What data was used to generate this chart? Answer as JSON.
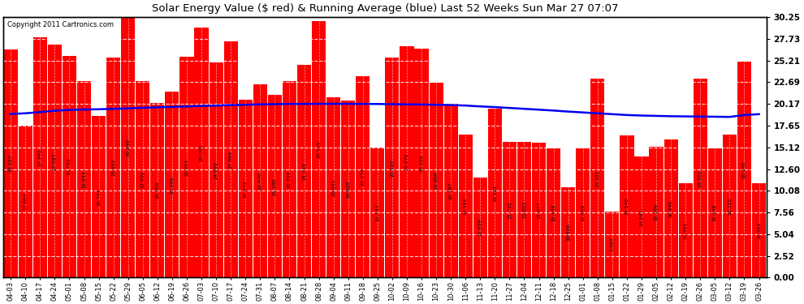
{
  "title": "Solar Energy Value ($ red) & Running Average (blue) Last 52 Weeks Sun Mar 27 07:07",
  "copyright": "Copyright 2011 Cartronics.com",
  "bar_color": "#ff0000",
  "line_color": "#0000ee",
  "background_color": "#ffffff",
  "plot_bg_color": "#ffffff",
  "grid_color": "#aaaaaa",
  "categories": [
    "04-03",
    "04-10",
    "04-17",
    "04-24",
    "05-01",
    "05-08",
    "05-15",
    "05-22",
    "05-29",
    "06-05",
    "06-12",
    "06-19",
    "06-26",
    "07-03",
    "07-10",
    "07-17",
    "07-24",
    "07-31",
    "08-07",
    "08-14",
    "08-21",
    "08-28",
    "09-04",
    "09-11",
    "09-18",
    "09-25",
    "10-02",
    "10-09",
    "10-16",
    "10-23",
    "10-30",
    "11-06",
    "11-13",
    "11-20",
    "11-27",
    "12-04",
    "12-11",
    "12-18",
    "12-25",
    "01-01",
    "01-08",
    "01-15",
    "01-22",
    "01-29",
    "02-05",
    "02-12",
    "02-19",
    "02-26",
    "03-05",
    "03-12",
    "03-19",
    "03-26"
  ],
  "values": [
    26.527,
    17.664,
    27.942,
    27.027,
    25.782,
    22.844,
    18.743,
    25.582,
    30.249,
    22.8,
    20.3,
    21.56,
    25.651,
    29.0,
    24.993,
    27.394,
    20.672,
    22.47,
    21.18,
    22.858,
    24.719,
    29.835,
    20.941,
    20.528,
    23.376,
    15.144,
    25.525,
    26.876,
    26.558,
    22.65,
    20.187,
    16.59,
    11.639,
    19.581,
    15.748,
    15.802,
    15.677,
    15.048,
    10.506,
    15.008,
    23.101,
    7.707,
    16.54,
    14.045,
    15.206,
    16.046,
    10.961,
    23.101,
    15.048,
    16.59,
    25.045,
    10.961
  ],
  "running_avg": [
    19.0,
    19.08,
    19.22,
    19.38,
    19.47,
    19.52,
    19.55,
    19.6,
    19.65,
    19.72,
    19.78,
    19.82,
    19.88,
    19.93,
    19.98,
    20.03,
    20.07,
    20.12,
    20.14,
    20.17,
    20.17,
    20.18,
    20.18,
    20.18,
    20.17,
    20.16,
    20.14,
    20.12,
    20.1,
    20.07,
    20.04,
    19.98,
    19.88,
    19.8,
    19.7,
    19.6,
    19.5,
    19.4,
    19.28,
    19.18,
    19.08,
    18.98,
    18.88,
    18.82,
    18.78,
    18.74,
    18.72,
    18.7,
    18.68,
    18.66,
    18.88,
    18.98
  ],
  "yticks": [
    0.0,
    2.52,
    5.04,
    7.56,
    10.08,
    12.6,
    15.12,
    17.65,
    20.17,
    22.69,
    25.21,
    27.73,
    30.25
  ],
  "ymax": 30.25,
  "ymin": 0.0,
  "figwidth": 9.9,
  "figheight": 3.75,
  "dpi": 100
}
